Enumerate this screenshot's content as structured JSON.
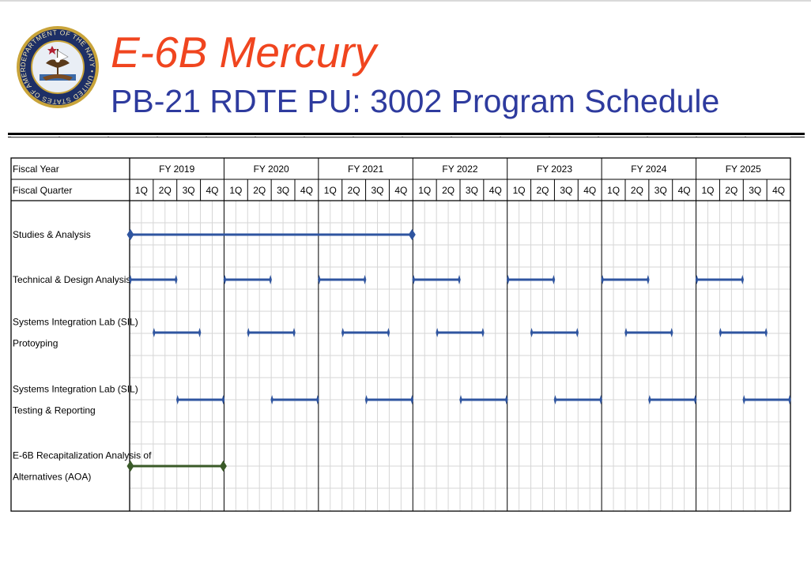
{
  "header": {
    "title": "E-6B Mercury",
    "subtitle": "PB-21 RDTE PU: 3002 Program Schedule",
    "seal_text": "DEPARTMENT OF THE NAVY • UNITED STATES OF AMERICA •"
  },
  "colors": {
    "title": "#f0451f",
    "subtitle": "#2e3b9e",
    "bar_blue": "#2f55a0",
    "bar_green": "#3a5a28",
    "grid": "#d6d6d6"
  },
  "chart_data": {
    "type": "gantt",
    "row_headers": [
      "Fiscal Year",
      "Fiscal Quarter"
    ],
    "fiscal_years": [
      "FY 2019",
      "FY 2020",
      "FY 2021",
      "FY 2022",
      "FY 2023",
      "FY 2024",
      "FY 2025"
    ],
    "quarters": [
      "1Q",
      "2Q",
      "3Q",
      "4Q"
    ],
    "activities": [
      {
        "label_lines": [
          "Studies & Analysis"
        ],
        "color": "blue",
        "end_style": "diamond",
        "bars": [
          {
            "start": "FY2019 1Q",
            "end": "FY2021 4Q",
            "start_q": 0,
            "end_q": 12
          }
        ]
      },
      {
        "label_lines": [
          "Technical & Design Analysis"
        ],
        "color": "blue",
        "end_style": "tick",
        "bars": [
          {
            "start": "FY2019 1Q",
            "end": "FY2019 2Q",
            "start_q": 0,
            "end_q": 2
          },
          {
            "start": "FY2020 1Q",
            "end": "FY2020 2Q",
            "start_q": 4,
            "end_q": 6
          },
          {
            "start": "FY2021 1Q",
            "end": "FY2021 2Q",
            "start_q": 8,
            "end_q": 10
          },
          {
            "start": "FY2022 1Q",
            "end": "FY2022 2Q",
            "start_q": 12,
            "end_q": 14
          },
          {
            "start": "FY2023 1Q",
            "end": "FY2023 2Q",
            "start_q": 16,
            "end_q": 18
          },
          {
            "start": "FY2024 1Q",
            "end": "FY2024 2Q",
            "start_q": 20,
            "end_q": 22
          },
          {
            "start": "FY2025 1Q",
            "end": "FY2025 2Q",
            "start_q": 24,
            "end_q": 26
          }
        ]
      },
      {
        "label_lines": [
          "Systems Integration Lab (SIL)",
          "Protoyping"
        ],
        "color": "blue",
        "end_style": "tick",
        "bars": [
          {
            "start": "FY2019 2Q",
            "end": "FY2019 3Q",
            "start_q": 1,
            "end_q": 3
          },
          {
            "start": "FY2020 2Q",
            "end": "FY2020 3Q",
            "start_q": 5,
            "end_q": 7
          },
          {
            "start": "FY2021 2Q",
            "end": "FY2021 3Q",
            "start_q": 9,
            "end_q": 11
          },
          {
            "start": "FY2022 2Q",
            "end": "FY2022 3Q",
            "start_q": 13,
            "end_q": 15
          },
          {
            "start": "FY2023 2Q",
            "end": "FY2023 3Q",
            "start_q": 17,
            "end_q": 19
          },
          {
            "start": "FY2024 2Q",
            "end": "FY2024 3Q",
            "start_q": 21,
            "end_q": 23
          },
          {
            "start": "FY2025 2Q",
            "end": "FY2025 3Q",
            "start_q": 25,
            "end_q": 27
          }
        ]
      },
      {
        "label_lines": [
          "Systems Integration Lab (SIL)",
          "Testing & Reporting"
        ],
        "color": "blue",
        "end_style": "tick",
        "bars": [
          {
            "start": "FY2019 3Q",
            "end": "FY2019 4Q",
            "start_q": 2,
            "end_q": 4
          },
          {
            "start": "FY2020 3Q",
            "end": "FY2020 4Q",
            "start_q": 6,
            "end_q": 8
          },
          {
            "start": "FY2021 3Q",
            "end": "FY2021 4Q",
            "start_q": 10,
            "end_q": 12
          },
          {
            "start": "FY2022 3Q",
            "end": "FY2022 4Q",
            "start_q": 14,
            "end_q": 16
          },
          {
            "start": "FY2023 3Q",
            "end": "FY2023 4Q",
            "start_q": 18,
            "end_q": 20
          },
          {
            "start": "FY2024 3Q",
            "end": "FY2024 4Q",
            "start_q": 22,
            "end_q": 24
          },
          {
            "start": "FY2025 3Q",
            "end": "FY2025 4Q",
            "start_q": 26,
            "end_q": 28
          }
        ]
      },
      {
        "label_lines": [
          "E-6B Recapitalization Analysis of",
          "Alternatives (AOA)"
        ],
        "color": "green",
        "end_style": "diamond",
        "bars": [
          {
            "start": "FY2019 1Q",
            "end": "FY2019 4Q",
            "start_q": 0,
            "end_q": 4
          }
        ]
      }
    ]
  }
}
